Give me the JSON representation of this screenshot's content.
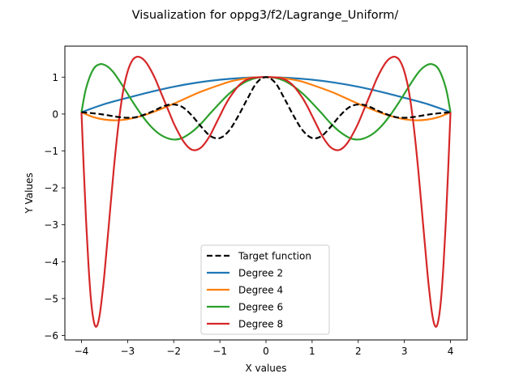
{
  "chart_data": {
    "type": "line",
    "title": "Visualization for oppg3/f2/Lagrange_Uniform/",
    "xlabel": "X values",
    "ylabel": "Y Values",
    "xlim": [
      -4.36,
      4.36
    ],
    "ylim": [
      -6.12,
      1.84
    ],
    "xticks": [
      -4,
      -3,
      -2,
      -1,
      0,
      1,
      2,
      3,
      4
    ],
    "yticks": [
      -6,
      -5,
      -4,
      -3,
      -2,
      -1,
      0,
      1
    ],
    "grid": false,
    "legend_position": "lower center",
    "colors": {
      "target": "#000000",
      "degree2": "#1f77b4",
      "degree4": "#ff7f0e",
      "degree6": "#2ca02c",
      "degree8": "#d62728"
    },
    "series": [
      {
        "name": "Target function",
        "style": "dashed",
        "x": [
          -4.0,
          -3.6,
          -3.2,
          -3.0,
          -2.8,
          -2.5,
          -2.2,
          -2.0,
          -1.8,
          -1.6,
          -1.4,
          -1.2,
          -1.0,
          -0.8,
          -0.6,
          -0.4,
          -0.2,
          0.0,
          0.2,
          0.4,
          0.6,
          0.8,
          1.0,
          1.2,
          1.4,
          1.6,
          1.8,
          2.0,
          2.2,
          2.5,
          2.8,
          3.0,
          3.2,
          3.6,
          4.0
        ],
        "y": [
          0.05,
          0.0,
          -0.08,
          -0.1,
          -0.08,
          0.05,
          0.22,
          0.26,
          0.18,
          -0.05,
          -0.35,
          -0.6,
          -0.65,
          -0.45,
          -0.05,
          0.42,
          0.85,
          1.0,
          0.85,
          0.42,
          -0.05,
          -0.45,
          -0.65,
          -0.6,
          -0.35,
          -0.05,
          0.18,
          0.26,
          0.22,
          0.05,
          -0.08,
          -0.1,
          -0.08,
          0.0,
          0.05
        ]
      },
      {
        "name": "Degree 2",
        "style": "solid",
        "x": [
          -4.0,
          -3.5,
          -3.0,
          -2.5,
          -2.0,
          -1.5,
          -1.0,
          -0.5,
          0.0,
          0.5,
          1.0,
          1.5,
          2.0,
          2.5,
          3.0,
          3.5,
          4.0
        ],
        "y": [
          0.05,
          0.27,
          0.44,
          0.6,
          0.74,
          0.85,
          0.93,
          0.98,
          1.0,
          0.98,
          0.93,
          0.85,
          0.74,
          0.6,
          0.44,
          0.27,
          0.05
        ]
      },
      {
        "name": "Degree 4",
        "style": "solid",
        "x": [
          -4.0,
          -3.75,
          -3.5,
          -3.25,
          -3.0,
          -2.75,
          -2.5,
          -2.25,
          -2.0,
          -1.75,
          -1.5,
          -1.25,
          -1.0,
          -0.75,
          -0.5,
          -0.25,
          0.0,
          0.25,
          0.5,
          0.75,
          1.0,
          1.25,
          1.5,
          1.75,
          2.0,
          2.25,
          2.5,
          2.75,
          3.0,
          3.25,
          3.5,
          3.75,
          4.0
        ],
        "y": [
          0.05,
          -0.08,
          -0.15,
          -0.17,
          -0.14,
          -0.07,
          0.03,
          0.15,
          0.28,
          0.42,
          0.56,
          0.68,
          0.79,
          0.89,
          0.95,
          0.99,
          1.0,
          0.99,
          0.95,
          0.89,
          0.79,
          0.68,
          0.56,
          0.42,
          0.28,
          0.15,
          0.03,
          -0.07,
          -0.14,
          -0.17,
          -0.15,
          -0.08,
          0.05
        ]
      },
      {
        "name": "Degree 6",
        "style": "solid",
        "x": [
          -4.0,
          -3.9,
          -3.75,
          -3.6,
          -3.45,
          -3.3,
          -3.1,
          -2.9,
          -2.7,
          -2.5,
          -2.3,
          -2.1,
          -1.95,
          -1.8,
          -1.6,
          -1.4,
          -1.2,
          -1.0,
          -0.8,
          -0.6,
          -0.4,
          -0.2,
          0.0,
          0.2,
          0.4,
          0.6,
          0.8,
          1.0,
          1.2,
          1.4,
          1.6,
          1.8,
          1.95,
          2.1,
          2.3,
          2.5,
          2.7,
          2.9,
          3.1,
          3.3,
          3.45,
          3.6,
          3.75,
          3.9,
          4.0
        ],
        "y": [
          0.05,
          0.7,
          1.2,
          1.35,
          1.3,
          1.12,
          0.75,
          0.35,
          -0.02,
          -0.33,
          -0.55,
          -0.67,
          -0.69,
          -0.64,
          -0.48,
          -0.25,
          0.03,
          0.3,
          0.55,
          0.75,
          0.9,
          0.98,
          1.0,
          0.98,
          0.9,
          0.75,
          0.55,
          0.3,
          0.03,
          -0.25,
          -0.48,
          -0.64,
          -0.69,
          -0.67,
          -0.55,
          -0.33,
          -0.02,
          0.35,
          0.75,
          1.12,
          1.3,
          1.35,
          1.2,
          0.7,
          0.05
        ]
      },
      {
        "name": "Degree 8",
        "style": "solid",
        "x": [
          -4.0,
          -3.95,
          -3.9,
          -3.85,
          -3.8,
          -3.75,
          -3.7,
          -3.65,
          -3.6,
          -3.55,
          -3.5,
          -3.4,
          -3.3,
          -3.2,
          -3.1,
          -3.0,
          -2.9,
          -2.8,
          -2.7,
          -2.6,
          -2.5,
          -2.4,
          -2.3,
          -2.2,
          -2.1,
          -2.0,
          -1.9,
          -1.8,
          -1.7,
          -1.6,
          -1.5,
          -1.4,
          -1.3,
          -1.2,
          -1.1,
          -1.0,
          -0.9,
          -0.8,
          -0.7,
          -0.6,
          -0.5,
          -0.4,
          -0.3,
          -0.2,
          -0.1,
          0.0,
          0.1,
          0.2,
          0.3,
          0.4,
          0.5,
          0.6,
          0.7,
          0.8,
          0.9,
          1.0,
          1.1,
          1.2,
          1.3,
          1.4,
          1.5,
          1.6,
          1.7,
          1.8,
          1.9,
          2.0,
          2.1,
          2.2,
          2.3,
          2.4,
          2.5,
          2.6,
          2.7,
          2.8,
          2.9,
          3.0,
          3.1,
          3.2,
          3.3,
          3.4,
          3.5,
          3.55,
          3.6,
          3.65,
          3.7,
          3.75,
          3.8,
          3.85,
          3.9,
          3.95,
          4.0
        ],
        "y": [
          0.05,
          -1.5,
          -2.9,
          -4.05,
          -4.95,
          -5.5,
          -5.75,
          -5.7,
          -5.4,
          -4.9,
          -4.3,
          -2.9,
          -1.5,
          -0.3,
          0.6,
          1.15,
          1.45,
          1.55,
          1.52,
          1.4,
          1.2,
          0.95,
          0.65,
          0.35,
          0.05,
          -0.25,
          -0.5,
          -0.72,
          -0.88,
          -0.97,
          -0.97,
          -0.9,
          -0.75,
          -0.55,
          -0.3,
          -0.05,
          0.2,
          0.42,
          0.6,
          0.76,
          0.87,
          0.94,
          0.98,
          0.99,
          1.0,
          1.0,
          1.0,
          0.99,
          0.98,
          0.94,
          0.87,
          0.76,
          0.6,
          0.42,
          0.2,
          -0.05,
          -0.3,
          -0.55,
          -0.75,
          -0.9,
          -0.97,
          -0.97,
          -0.88,
          -0.72,
          -0.5,
          -0.25,
          0.05,
          0.35,
          0.65,
          0.95,
          1.2,
          1.4,
          1.52,
          1.55,
          1.45,
          1.15,
          0.6,
          -0.3,
          -1.5,
          -2.9,
          -4.3,
          -4.9,
          -5.4,
          -5.7,
          -5.75,
          -5.5,
          -4.95,
          -4.05,
          -2.9,
          -1.5,
          0.05
        ]
      }
    ]
  }
}
